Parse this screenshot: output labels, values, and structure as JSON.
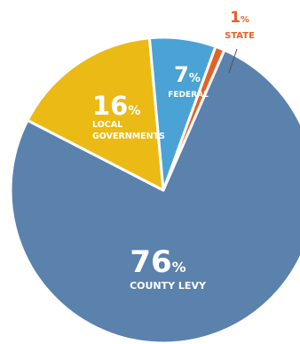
{
  "chart_data": {
    "type": "pie",
    "title": "",
    "slices": [
      {
        "key": "state",
        "percent_label": "1",
        "pct_symbol": "%",
        "name_lines": [
          "STATE"
        ],
        "value": 1,
        "color": "#e0632a"
      },
      {
        "key": "county",
        "percent_label": "76",
        "pct_symbol": "%",
        "name_lines": [
          "COUNTY LEVY"
        ],
        "value": 76,
        "color": "#5b81ad"
      },
      {
        "key": "local",
        "percent_label": "16",
        "pct_symbol": "%",
        "name_lines": [
          "LOCAL",
          "GOVERNMENTS"
        ],
        "value": 16,
        "color": "#ebba14"
      },
      {
        "key": "federal",
        "percent_label": "7",
        "pct_symbol": "%",
        "name_lines": [
          "FEDERAL"
        ],
        "value": 7,
        "color": "#4ba2d4"
      }
    ],
    "legend": "none"
  }
}
